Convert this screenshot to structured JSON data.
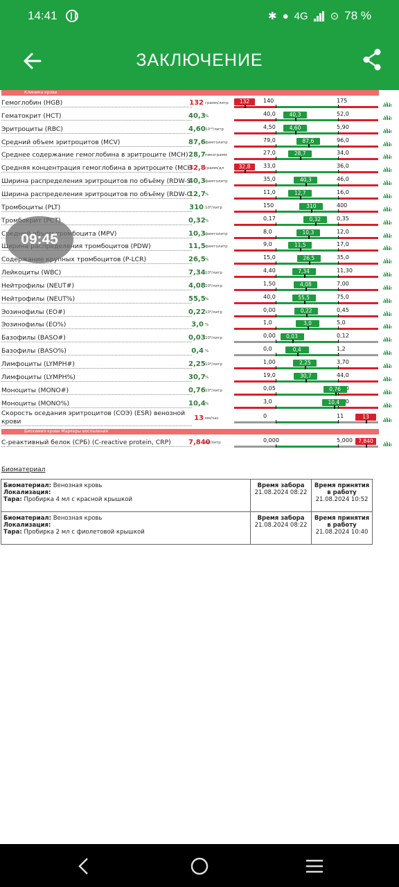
{
  "status": {
    "time": "14:41",
    "right": "4G",
    "battery": "78 %"
  },
  "appbar": {
    "title": "ЗАКЛЮЧЕНИЕ"
  },
  "sections": [
    {
      "label": "Клиника крови"
    },
    {
      "label": "Биохимия крови Маркеры воспаления"
    }
  ],
  "rows": [
    {
      "name": "Гемоглобин (HGB)",
      "value": "132",
      "unit": "грамм/литр",
      "min": "140",
      "max": "175",
      "state": "low",
      "pos": 0.02
    },
    {
      "name": "Гематокрит (HCT)",
      "value": "40,3",
      "unit": "%",
      "min": "40,0",
      "max": "52,0",
      "state": "ok",
      "pos": 0.3
    },
    {
      "name": "Эритроциты (RBC)",
      "value": "4,60",
      "unit": "10¹²/литр",
      "min": "4,50",
      "max": "5,90",
      "state": "ok",
      "pos": 0.3
    },
    {
      "name": "Средний объем эритроцитов (MCV)",
      "value": "87,6",
      "unit": "фемтолитр",
      "min": "79,0",
      "max": "96,0",
      "state": "ok",
      "pos": 0.51
    },
    {
      "name": "Среднее содержание гемоглобина в эритроците (MCH)",
      "value": "28,7",
      "unit": "пикограмм",
      "min": "27,0",
      "max": "34,0",
      "state": "ok",
      "pos": 0.38
    },
    {
      "name": "Средняя концентрация гемоглобина в эритроците (MCHC)",
      "value": "32,8",
      "unit": "грамм/дл",
      "min": "33,0",
      "max": "36,0",
      "state": "low",
      "pos": 0.02
    },
    {
      "name": "Ширина распределения эритроцитов по объёму (RDW-SD)",
      "value": "40,3",
      "unit": "фемтолитр",
      "min": "35,0",
      "max": "46,0",
      "state": "ok",
      "pos": 0.47
    },
    {
      "name": "Ширина распределения эритроцитов по объёму (RDW-CV)",
      "value": "12,7",
      "unit": "%",
      "min": "11,0",
      "max": "16,0",
      "state": "ok",
      "pos": 0.38
    },
    {
      "name": "Тромбоциты (PLT)",
      "value": "310",
      "unit": "10⁹/литр",
      "min": "150",
      "max": "400",
      "state": "ok",
      "pos": 0.56
    },
    {
      "name": "Тромбокрит (PCT)",
      "value": "0,32",
      "unit": "%",
      "min": "0,17",
      "max": "0,35",
      "state": "ok",
      "pos": 0.62
    },
    {
      "name": "Средний объем тромбоцита (MPV)",
      "value": "10,3",
      "unit": "фемтолитр",
      "min": "8,0",
      "max": "12,0",
      "state": "ok",
      "pos": 0.51
    },
    {
      "name": "Ширина распределения тромбоцитов (PDW)",
      "value": "11,5",
      "unit": "фемтолитр",
      "min": "9,0",
      "max": "17,0",
      "state": "ok",
      "pos": 0.38
    },
    {
      "name": "Содержание крупных тромбоцитов (P-LCR)",
      "value": "26,5",
      "unit": "%",
      "min": "15,0",
      "max": "35,0",
      "state": "ok",
      "pos": 0.52
    },
    {
      "name": "Лейкоциты (WBC)",
      "value": "7,34",
      "unit": "10⁹/литр",
      "min": "4,40",
      "max": "11,30",
      "state": "ok",
      "pos": 0.44
    },
    {
      "name": "Нейтрофилы (NEUT#)",
      "value": "4,08",
      "unit": "10⁹/литр",
      "min": "1,50",
      "max": "7,00",
      "state": "ok",
      "pos": 0.47
    },
    {
      "name": "Нейтрофилы (NEUT%)",
      "value": "55,5",
      "unit": "%",
      "min": "40,0",
      "max": "75,0",
      "state": "ok",
      "pos": 0.44
    },
    {
      "name": "Эозинофилы (EO#)",
      "value": "0,22",
      "unit": "10⁹/литр",
      "min": "0,00",
      "max": "0,45",
      "state": "ok",
      "pos": 0.48
    },
    {
      "name": "Эозинофилы (EO%)",
      "value": "3,0",
      "unit": "%",
      "min": "1,0",
      "max": "5,0",
      "state": "ok",
      "pos": 0.5
    },
    {
      "name": "Базофилы (BASO#)",
      "value": "0,03",
      "unit": "10⁹/литр",
      "min": "0,00",
      "max": "0,12",
      "state": "ok",
      "pos": 0.25,
      "grey": true
    },
    {
      "name": "Базофилы (BASO%)",
      "value": "0,4",
      "unit": "%",
      "min": "0,0",
      "max": "1,2",
      "state": "ok",
      "pos": 0.33,
      "grey": true
    },
    {
      "name": "Лимфоциты (LYMPH#)",
      "value": "2,25",
      "unit": "10⁹/литр",
      "min": "1,00",
      "max": "3,70",
      "state": "ok",
      "pos": 0.46
    },
    {
      "name": "Лимфоциты (LYMPH%)",
      "value": "30,7",
      "unit": "%",
      "min": "19,0",
      "max": "44,0",
      "state": "ok",
      "pos": 0.47
    },
    {
      "name": "Моноциты (MONO#)",
      "value": "0,76",
      "unit": "10⁹/литр",
      "min": "0,05",
      "max": "0,80",
      "state": "ok",
      "pos": 0.94
    },
    {
      "name": "Моноциты (MONO%)",
      "value": "10,4",
      "unit": "%",
      "min": "3,0",
      "max": "11,0",
      "state": "ok",
      "pos": 0.92
    },
    {
      "name": "Скорость оседания эритроцитов (СОЭ) (ESR) венозной",
      "name2": "крови",
      "value": "13",
      "unit": "мм/час",
      "min": "0",
      "max": "11",
      "state": "high",
      "pos": 1.1,
      "grey": true
    },
    {
      "name": "С-реактивный белок (СРБ) (C-reactive protein, CRP)",
      "value": "7,840",
      "unit": "мг/литр",
      "min": "0,000",
      "max": "5,000",
      "state": "high",
      "pos": 1.1,
      "grey": true
    }
  ],
  "bubble": "09:45",
  "biomaterial": {
    "title": "Биоматериал",
    "col_taken": "Время забора",
    "col_accepted": "Время принятия в работу",
    "lbl_material": "Биоматериал:",
    "lbl_loc": "Локализация:",
    "lbl_tube": "Тара:",
    "items": [
      {
        "material": "Венозная кровь",
        "tube": "Пробирка 4 мл с красной крышкой",
        "taken": "21.08.2024 08:22",
        "accepted": "21.08.2024 10:52"
      },
      {
        "material": "Венозная кровь",
        "tube": "Пробирка 2 мл с фиолетовой крышкой",
        "taken": "21.08.2024 08:22",
        "accepted": "21.08.2024 10:40"
      }
    ]
  }
}
